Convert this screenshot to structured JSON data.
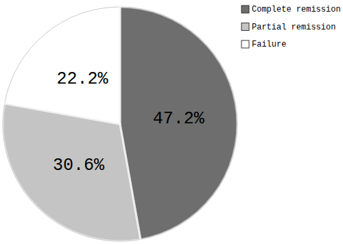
{
  "chart_data": {
    "type": "pie",
    "categories": [
      "Complete remission",
      "Partial remission",
      "Failure"
    ],
    "values": [
      47.2,
      30.6,
      22.2
    ],
    "value_labels": [
      "47.2%",
      "30.6%",
      "22.2%"
    ],
    "colors": [
      "#6e6e6e",
      "#c4c4c4",
      "#ffffff"
    ],
    "data_labels": true,
    "legend": "top-right"
  }
}
